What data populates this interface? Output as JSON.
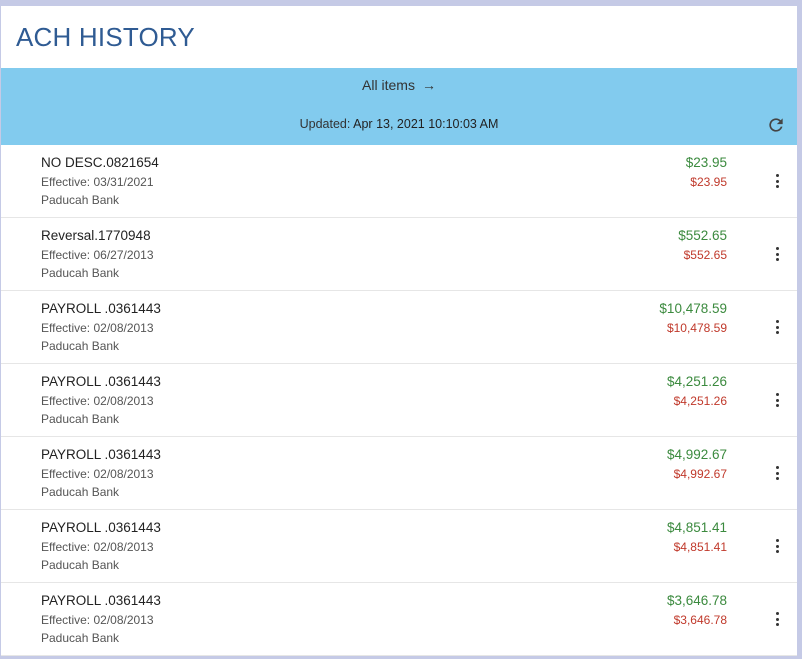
{
  "header": {
    "title": "ACH HISTORY"
  },
  "banner": {
    "all_items_label": "All items",
    "arrow_glyph": "→",
    "updated_label": "Updated:",
    "updated_value": "Apr 13, 2021 10:10:03 AM",
    "refresh_icon": "refresh-icon"
  },
  "colors": {
    "title": "#2f5b93",
    "banner": "#82cbee",
    "amount_positive": "#3b8a3e",
    "amount_negative": "#c0392b"
  },
  "items": [
    {
      "desc": "NO DESC.0821654",
      "effective": "Effective: 03/31/2021",
      "bank": "Paducah Bank",
      "amount": "$23.95",
      "amount_alt": "$23.95"
    },
    {
      "desc": "Reversal.1770948",
      "effective": "Effective: 06/27/2013",
      "bank": "Paducah Bank",
      "amount": "$552.65",
      "amount_alt": "$552.65"
    },
    {
      "desc": "PAYROLL .0361443",
      "effective": "Effective: 02/08/2013",
      "bank": "Paducah Bank",
      "amount": "$10,478.59",
      "amount_alt": "$10,478.59"
    },
    {
      "desc": "PAYROLL .0361443",
      "effective": "Effective: 02/08/2013",
      "bank": "Paducah Bank",
      "amount": "$4,251.26",
      "amount_alt": "$4,251.26"
    },
    {
      "desc": "PAYROLL .0361443",
      "effective": "Effective: 02/08/2013",
      "bank": "Paducah Bank",
      "amount": "$4,992.67",
      "amount_alt": "$4,992.67"
    },
    {
      "desc": "PAYROLL .0361443",
      "effective": "Effective: 02/08/2013",
      "bank": "Paducah Bank",
      "amount": "$4,851.41",
      "amount_alt": "$4,851.41"
    },
    {
      "desc": "PAYROLL .0361443",
      "effective": "Effective: 02/08/2013",
      "bank": "Paducah Bank",
      "amount": "$3,646.78",
      "amount_alt": "$3,646.78"
    }
  ]
}
